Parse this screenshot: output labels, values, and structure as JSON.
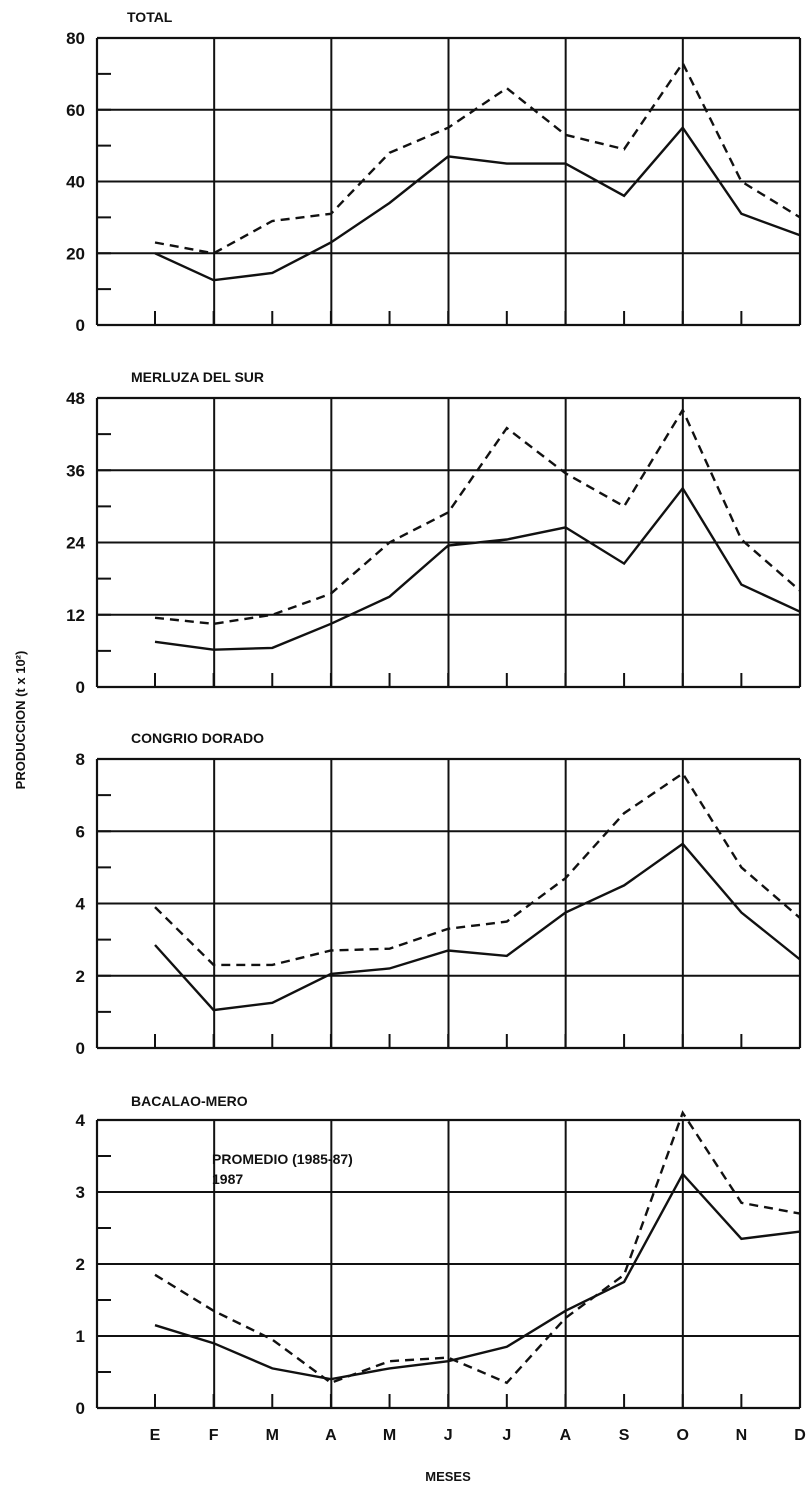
{
  "chart_data": {
    "type": "line",
    "ylabel": "PRODUCCION (t x 10²)",
    "xlabel": "MESES",
    "categories": [
      "E",
      "F",
      "M",
      "A",
      "M",
      "J",
      "J",
      "A",
      "S",
      "O",
      "N",
      "D"
    ],
    "legend": [
      "PROMEDIO (1985-87)",
      "1987"
    ],
    "panels": [
      {
        "title": "TOTAL",
        "ylim": [
          0,
          80
        ],
        "yticks": [
          "0",
          "20",
          "40",
          "60",
          "80"
        ],
        "series": [
          {
            "name": "PROMEDIO (1985-87)",
            "style": "dashed",
            "values": [
              23,
              20,
              29,
              31,
              48,
              55,
              66,
              53,
              49,
              73,
              40,
              30
            ]
          },
          {
            "name": "1987",
            "style": "solid",
            "values": [
              20,
              12.5,
              14.5,
              23,
              34,
              47,
              45,
              45,
              36,
              55,
              31,
              25
            ]
          }
        ]
      },
      {
        "title": "MERLUZA DEL SUR",
        "ylim": [
          0,
          48
        ],
        "yticks": [
          "0",
          "12",
          "24",
          "36",
          "48"
        ],
        "series": [
          {
            "name": "PROMEDIO (1985-87)",
            "style": "dashed",
            "values": [
              11.5,
              10.5,
              12,
              15.5,
              24,
              29,
              43,
              35.5,
              30,
              46,
              24.5,
              16
            ]
          },
          {
            "name": "1987",
            "style": "solid",
            "values": [
              7.5,
              6.2,
              6.5,
              10.5,
              15,
              23.5,
              24.5,
              26.5,
              20.5,
              33,
              17,
              12.5
            ]
          }
        ]
      },
      {
        "title": "CONGRIO DORADO",
        "ylim": [
          0,
          8
        ],
        "yticks": [
          "0",
          "2",
          "4",
          "6",
          "8"
        ],
        "series": [
          {
            "name": "PROMEDIO (1985-87)",
            "style": "dashed",
            "values": [
              3.9,
              2.3,
              2.3,
              2.7,
              2.75,
              3.3,
              3.5,
              4.7,
              6.5,
              7.6,
              5,
              3.6
            ]
          },
          {
            "name": "1987",
            "style": "solid",
            "values": [
              2.85,
              1.05,
              1.25,
              2.05,
              2.2,
              2.7,
              2.55,
              3.75,
              4.5,
              5.65,
              3.75,
              2.45
            ]
          }
        ]
      },
      {
        "title": "BACALAO-MERO",
        "ylim": [
          0,
          4
        ],
        "yticks": [
          "0",
          "1",
          "2",
          "3",
          "4"
        ],
        "series": [
          {
            "name": "PROMEDIO (1985-87)",
            "style": "dashed",
            "values": [
              1.85,
              1.35,
              0.95,
              0.35,
              0.65,
              0.7,
              0.35,
              1.25,
              1.85,
              4.1,
              2.85,
              2.7
            ]
          },
          {
            "name": "1987",
            "style": "solid",
            "values": [
              1.15,
              0.9,
              0.55,
              0.4,
              0.55,
              0.65,
              0.85,
              1.35,
              1.75,
              3.25,
              2.35,
              2.45
            ]
          }
        ]
      }
    ]
  }
}
